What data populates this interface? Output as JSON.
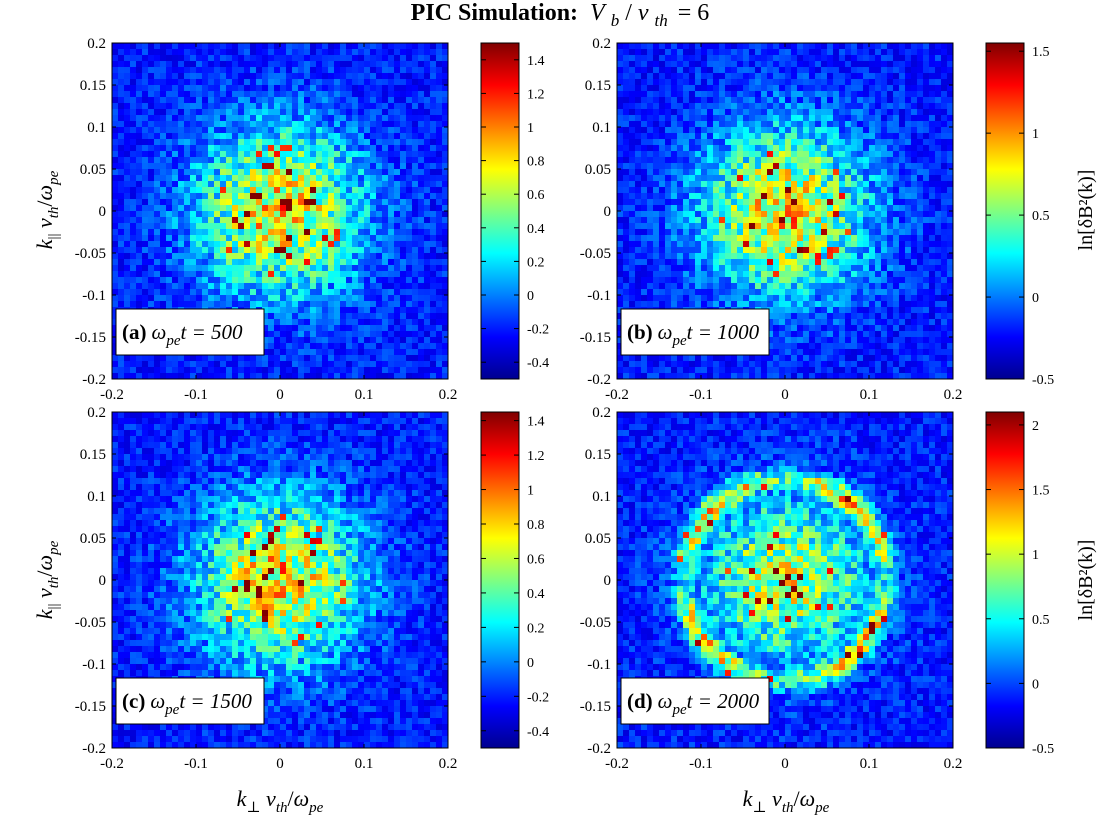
{
  "figure": {
    "title_prefix": "PIC Simulation:",
    "title_v": "V",
    "title_b": "b",
    "title_slash": "/",
    "title_v2": "v",
    "title_th": "th",
    "title_eq": "= 6"
  },
  "axis_text": {
    "ylabel_k": "k",
    "ylabel_par": "||",
    "ylabel_v": " v",
    "ylabel_th": "th",
    "ylabel_slash": "/",
    "ylabel_omega": "ω",
    "ylabel_pe": "pe",
    "xlabel_k": "k",
    "xlabel_perp": "⊥",
    "xlabel_v": " v",
    "xlabel_th": "th",
    "xlabel_slash": "/",
    "xlabel_omega": "ω",
    "xlabel_pe": "pe",
    "colorbar_label": "ln[δB²(k)]"
  },
  "colors": {
    "colormap": [
      "#00008f",
      "#0000ff",
      "#0080ff",
      "#00ffff",
      "#80ff80",
      "#ffff00",
      "#ff8000",
      "#ff0000",
      "#800000"
    ],
    "background": "#ffffff"
  },
  "chart_data": [
    {
      "type": "heatmap",
      "panel_label": "(a)",
      "time_symbol": "ω",
      "time_sub": "pe",
      "time_text": "t = 500",
      "xlim": [
        -0.2,
        0.2
      ],
      "ylim": [
        -0.2,
        0.2
      ],
      "xticks": [
        "-0.2",
        "-0.1",
        "0",
        "0.1",
        "0.2"
      ],
      "yticks": [
        "0.2",
        "0.15",
        "0.1",
        "0.05",
        "0",
        "-0.05",
        "-0.1",
        "-0.15",
        "-0.2"
      ],
      "colorbar_range": [
        -0.5,
        1.5
      ],
      "colorbar_ticks": [
        "1.4",
        "1.2",
        "1",
        "0.8",
        "0.6",
        "0.4",
        "0.2",
        "0",
        "-0.2",
        "-0.4"
      ],
      "peak_value": 1.4,
      "seed": 11
    },
    {
      "type": "heatmap",
      "panel_label": "(b)",
      "time_symbol": "ω",
      "time_sub": "pe",
      "time_text": "t = 1000",
      "xlim": [
        -0.2,
        0.2
      ],
      "ylim": [
        -0.2,
        0.2
      ],
      "xticks": [
        "-0.2",
        "-0.1",
        "0",
        "0.1",
        "0.2"
      ],
      "yticks": [
        "0.2",
        "0.15",
        "0.1",
        "0.05",
        "0",
        "-0.05",
        "-0.1",
        "-0.15",
        "-0.2"
      ],
      "colorbar_range": [
        -0.5,
        1.55
      ],
      "colorbar_ticks": [
        "1.5",
        "1",
        "0.5",
        "0",
        "-0.5"
      ],
      "peak_value": 1.5,
      "seed": 23
    },
    {
      "type": "heatmap",
      "panel_label": "(c)",
      "time_symbol": "ω",
      "time_sub": "pe",
      "time_text": "t = 1500",
      "xlim": [
        -0.2,
        0.2
      ],
      "ylim": [
        -0.2,
        0.2
      ],
      "xticks": [
        "-0.2",
        "-0.1",
        "0",
        "0.1",
        "0.2"
      ],
      "yticks": [
        "0.2",
        "0.15",
        "0.1",
        "0.05",
        "0",
        "-0.05",
        "-0.1",
        "-0.15",
        "-0.2"
      ],
      "colorbar_range": [
        -0.5,
        1.45
      ],
      "colorbar_ticks": [
        "1.4",
        "1.2",
        "1",
        "0.8",
        "0.6",
        "0.4",
        "0.2",
        "0",
        "-0.2",
        "-0.4"
      ],
      "peak_value": 1.4,
      "seed": 37
    },
    {
      "type": "heatmap",
      "panel_label": "(d)",
      "time_symbol": "ω",
      "time_sub": "pe",
      "time_text": "t = 2000",
      "xlim": [
        -0.2,
        0.2
      ],
      "ylim": [
        -0.2,
        0.2
      ],
      "xticks": [
        "-0.2",
        "-0.1",
        "0",
        "0.1",
        "0.2"
      ],
      "yticks": [
        "0.2",
        "0.15",
        "0.1",
        "0.05",
        "0",
        "-0.05",
        "-0.1",
        "-0.15",
        "-0.2"
      ],
      "colorbar_range": [
        -0.5,
        2.1
      ],
      "colorbar_ticks": [
        "2",
        "1.5",
        "1",
        "0.5",
        "0",
        "-0.5"
      ],
      "peak_value": 2.0,
      "seed": 53
    }
  ]
}
